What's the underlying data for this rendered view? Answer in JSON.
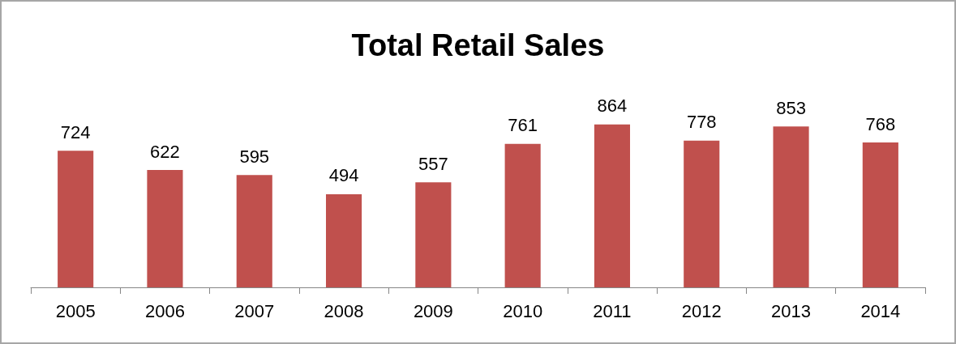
{
  "chart_data": {
    "type": "bar",
    "title": "Total Retail Sales",
    "categories": [
      "2005",
      "2006",
      "2007",
      "2008",
      "2009",
      "2010",
      "2011",
      "2012",
      "2013",
      "2014"
    ],
    "values": [
      724,
      622,
      595,
      494,
      557,
      761,
      864,
      778,
      853,
      768
    ],
    "color": "#c0504d",
    "data_labels": true
  }
}
